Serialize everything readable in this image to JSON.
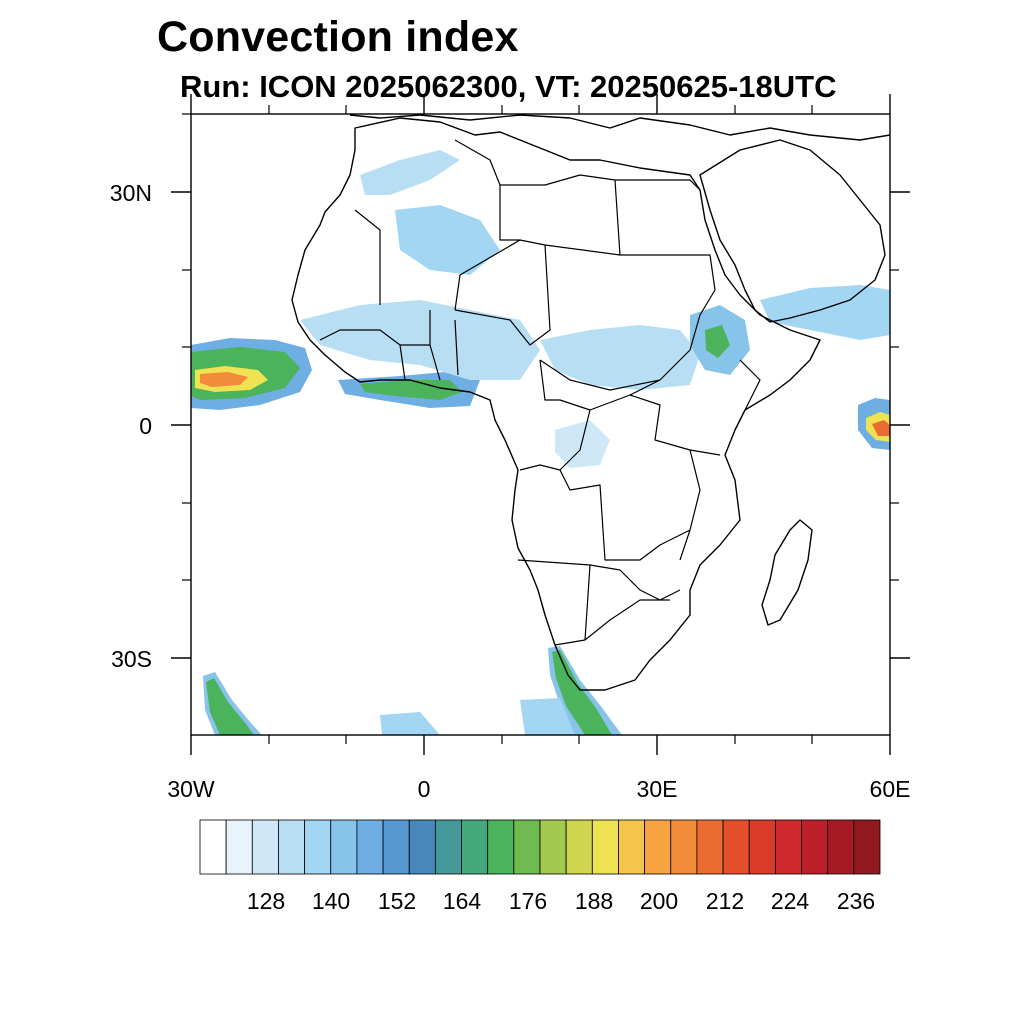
{
  "title": "Convection index",
  "subtitle": "Run: ICON 2025062300,  VT: 20250625-18UTC",
  "axes": {
    "lat_labels": [
      "30N",
      "0",
      "30S"
    ],
    "lon_labels": [
      "30W",
      "0",
      "30E",
      "60E"
    ]
  },
  "colorbar": {
    "labels": [
      "128",
      "140",
      "152",
      "164",
      "176",
      "188",
      "200",
      "212",
      "224",
      "236"
    ],
    "colors": [
      "#ffffff",
      "#e8f4fc",
      "#cfe8f7",
      "#b8def4",
      "#a2d6f3",
      "#88c3ea",
      "#6eaee2",
      "#5797d2",
      "#4788b8",
      "#45999a",
      "#44a97d",
      "#4ab35b",
      "#6fbb4f",
      "#a2ca4f",
      "#cfd751",
      "#efe353",
      "#f6c64a",
      "#f6a442",
      "#f28b3a",
      "#ea6c31",
      "#e3502b",
      "#da3b2b",
      "#cf2a2c",
      "#bd1f2a",
      "#a81a23",
      "#901a1e"
    ]
  },
  "chart_data": {
    "type": "heatmap",
    "title": "Convection index",
    "subtitle": "Run: ICON 2025062300,  VT: 20250625-18UTC",
    "lon_range": [
      -30,
      60
    ],
    "lat_range": [
      -40,
      40
    ],
    "colorbar_ticks": [
      128,
      140,
      152,
      164,
      176,
      188,
      200,
      212,
      224,
      236
    ]
  }
}
